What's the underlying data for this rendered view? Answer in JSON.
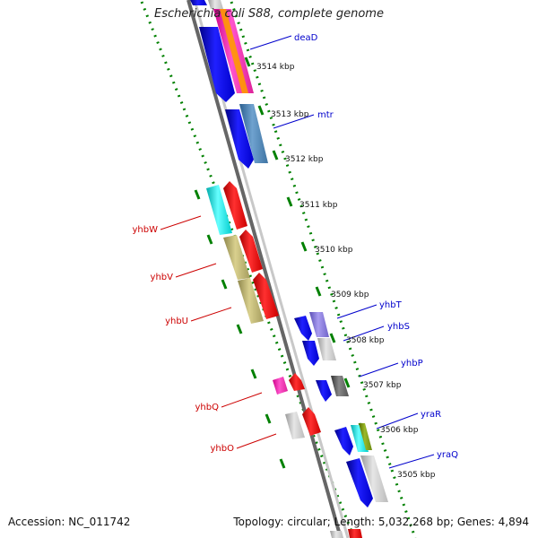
{
  "title": "Escherichia coli S88, complete genome",
  "footer": {
    "accession": "Accession: NC_011742",
    "summary": "Topology: circular; Length: 5,032,268 bp; Genes: 4,894"
  },
  "ticks": [
    "3514 kbp",
    "3513 kbp",
    "3512 kbp",
    "3511 kbp",
    "3510 kbp",
    "3509 kbp",
    "3508 kbp",
    "3507 kbp",
    "3506 kbp",
    "3505 kbp"
  ],
  "genes": {
    "right": [
      {
        "name": "deaD",
        "color": "#0000cc"
      },
      {
        "name": "mtr",
        "color": "#0000cc"
      },
      {
        "name": "yhbT",
        "color": "#0000cc"
      },
      {
        "name": "yhbS",
        "color": "#0000cc"
      },
      {
        "name": "yhbP",
        "color": "#0000cc"
      },
      {
        "name": "yraR",
        "color": "#0000cc"
      },
      {
        "name": "yraQ",
        "color": "#0000cc"
      }
    ],
    "left": [
      {
        "name": "yhbW",
        "color": "#cc0000"
      },
      {
        "name": "yhbV",
        "color": "#cc0000"
      },
      {
        "name": "yhbU",
        "color": "#cc0000"
      },
      {
        "name": "yhbQ",
        "color": "#cc0000"
      },
      {
        "name": "yhbO",
        "color": "#cc0000"
      }
    ]
  },
  "colors": {
    "backbone": "#808080",
    "dotted_ring": "#008000",
    "forward_strand": "#0000ff",
    "reverse_strand": "#ff0000"
  }
}
